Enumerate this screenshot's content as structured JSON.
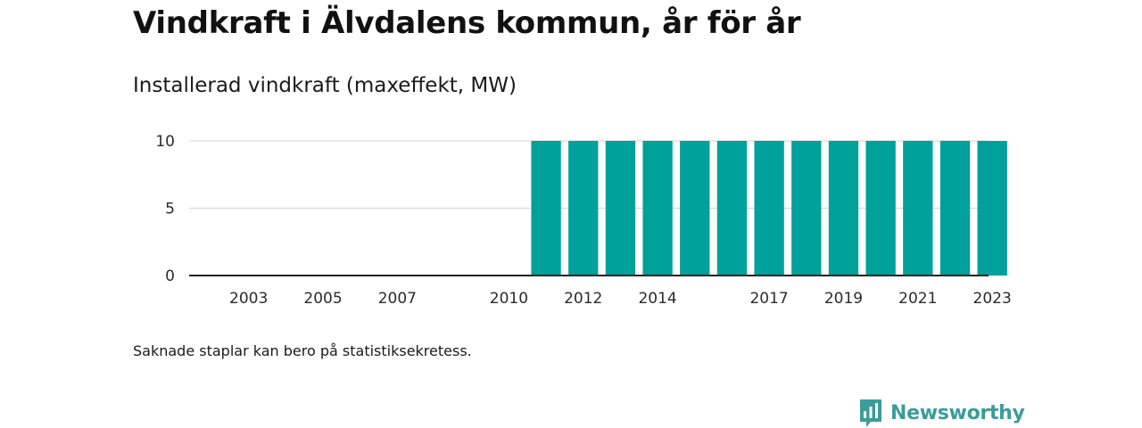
{
  "title": "Vindkraft i Älvdalens kommun, år för år",
  "subtitle": "Installerad vindkraft (maxeffekt, MW)",
  "footnote": "Saknade staplar kan bero på statistiksekretess.",
  "brand": {
    "name": "Newsworthy",
    "logo_icon": "newsworthy-bar-chart-icon",
    "color": "#3c9c9a"
  },
  "chart_data": {
    "type": "bar",
    "categories": [
      "2002",
      "2003",
      "2004",
      "2005",
      "2006",
      "2007",
      "2008",
      "2009",
      "2010",
      "2011",
      "2012",
      "2013",
      "2014",
      "2015",
      "2016",
      "2017",
      "2018",
      "2019",
      "2020",
      "2021",
      "2022",
      "2023"
    ],
    "values": [
      0,
      0,
      0,
      0,
      0,
      0,
      0,
      0,
      0,
      10,
      10,
      10,
      10,
      10,
      10,
      10,
      10,
      10,
      10,
      10,
      10,
      10
    ],
    "x_tick_labels": [
      "2003",
      "2005",
      "2007",
      "2010",
      "2012",
      "2014",
      "2017",
      "2019",
      "2021",
      "2023"
    ],
    "y_ticks": [
      0,
      5,
      10
    ],
    "ylim": [
      0,
      10
    ],
    "title": "Vindkraft i Älvdalens kommun, år för år",
    "ylabel": "Installerad vindkraft (maxeffekt, MW)",
    "xlabel": "",
    "grid": true,
    "legend": "none",
    "bar_color": "#00a19a",
    "grid_color": "#d9d9d9",
    "axis_color": "#222222"
  }
}
